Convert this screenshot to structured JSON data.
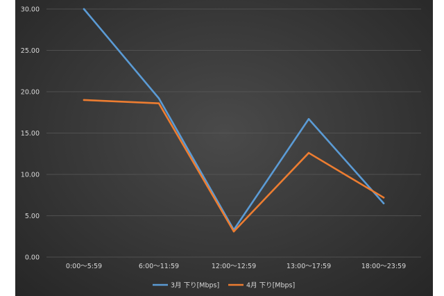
{
  "chart_data": {
    "type": "line",
    "categories": [
      "0:00～5:59",
      "6:00～11:59",
      "12:00～12:59",
      "13:00～17:59",
      "18:00～23:59"
    ],
    "series": [
      {
        "name": "3月 下り[Mbps]",
        "values": [
          30.0,
          19.2,
          3.3,
          16.7,
          6.5
        ],
        "color": "#5b9bd5"
      },
      {
        "name": "4月 下り[Mbps]",
        "values": [
          19.0,
          18.6,
          3.1,
          12.6,
          7.2
        ],
        "color": "#ed7d31"
      }
    ],
    "y_ticks": [
      "0.00",
      "5.00",
      "10.00",
      "15.00",
      "20.00",
      "25.00",
      "30.00"
    ],
    "ylim": [
      0,
      30
    ],
    "grid": true,
    "legend_position": "bottom"
  }
}
